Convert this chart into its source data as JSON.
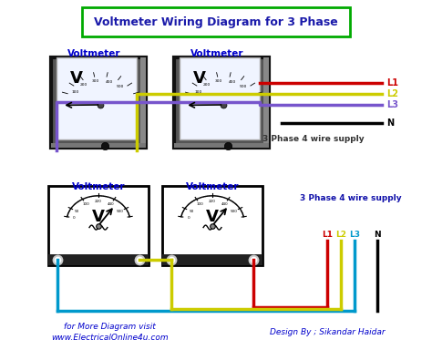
{
  "title": "Voltmeter Wiring Diagram for 3 Phase",
  "title_color": "#1a1aaa",
  "title_box_color": "#00aa00",
  "bg_color": "#ffffff",
  "voltmeter_label_color": "#0000cc",
  "wire_colors": {
    "L1": "#cc0000",
    "L2": "#cccc00",
    "L3": "#7755cc",
    "N": "#000000",
    "blue": "#0099cc"
  },
  "line_labels": [
    "L1",
    "L2",
    "L3",
    "N"
  ],
  "label_colors": [
    "#cc0000",
    "#cccc00",
    "#7755cc",
    "#000000"
  ],
  "supply_text": "3 Phase 4 wire supply",
  "supply_text2": "3 Phase 4 wire supply",
  "footer_left": "for More Diagram visit",
  "footer_left2": "www.ElectricalOnline4u.com",
  "footer_right": "Design By ; Sikandar Haidar",
  "footer_color": "#0000cc"
}
